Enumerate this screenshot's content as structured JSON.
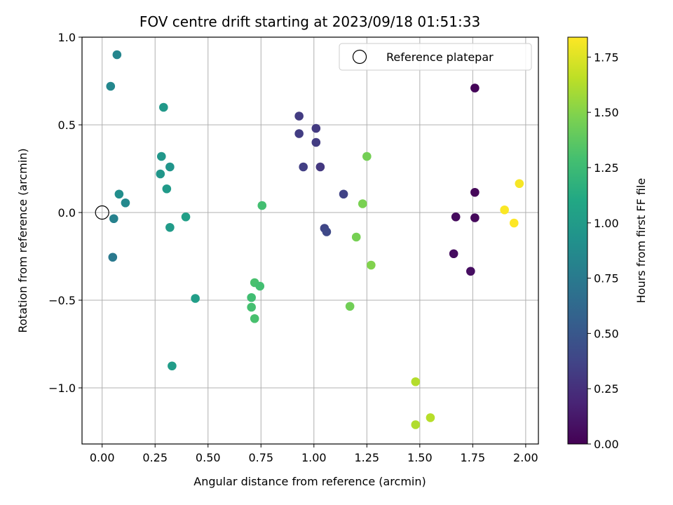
{
  "chart_data": {
    "type": "scatter",
    "title": "FOV centre drift starting at 2023/09/18 01:51:33",
    "xlabel": "Angular distance from reference (arcmin)",
    "ylabel": "Rotation from reference (arcmin)",
    "xlim": [
      -0.095,
      2.06
    ],
    "ylim": [
      -1.32,
      1.0
    ],
    "xticks": [
      0.0,
      0.25,
      0.5,
      0.75,
      1.0,
      1.25,
      1.5,
      1.75,
      2.0
    ],
    "xtick_labels": [
      "0.00",
      "0.25",
      "0.50",
      "0.75",
      "1.00",
      "1.25",
      "1.50",
      "1.75",
      "2.00"
    ],
    "yticks": [
      1.0,
      0.5,
      0.0,
      -0.5,
      -1.0
    ],
    "ytick_labels": [
      "1.0",
      "0.5",
      "0.0",
      "−0.5",
      "−1.0"
    ],
    "grid": true,
    "legend": {
      "placement": "top-right",
      "entries": [
        "Reference platepar"
      ]
    },
    "reference_point": {
      "name": "Reference platepar",
      "x": 0.0,
      "y": 0.0
    },
    "colorbar": {
      "label": "Hours from first FF file",
      "colormap": "viridis",
      "range": [
        0.0,
        1.84
      ],
      "ticks": [
        0.0,
        0.25,
        0.5,
        0.75,
        1.0,
        1.25,
        1.5,
        1.75
      ],
      "tick_labels": [
        "0.00",
        "0.25",
        "0.50",
        "0.75",
        "1.00",
        "1.25",
        "1.50",
        "1.75"
      ]
    },
    "points": [
      {
        "x": 1.76,
        "y": 0.71,
        "c": 0.02
      },
      {
        "x": 1.76,
        "y": 0.115,
        "c": 0.03
      },
      {
        "x": 1.76,
        "y": -0.03,
        "c": 0.04
      },
      {
        "x": 1.67,
        "y": -0.025,
        "c": 0.05
      },
      {
        "x": 1.66,
        "y": -0.235,
        "c": 0.06
      },
      {
        "x": 1.74,
        "y": -0.335,
        "c": 0.07
      },
      {
        "x": 0.93,
        "y": 0.55,
        "c": 0.32
      },
      {
        "x": 0.93,
        "y": 0.45,
        "c": 0.33
      },
      {
        "x": 1.01,
        "y": 0.48,
        "c": 0.31
      },
      {
        "x": 1.01,
        "y": 0.4,
        "c": 0.32
      },
      {
        "x": 0.95,
        "y": 0.26,
        "c": 0.34
      },
      {
        "x": 1.03,
        "y": 0.26,
        "c": 0.3
      },
      {
        "x": 1.14,
        "y": 0.105,
        "c": 0.36
      },
      {
        "x": 1.05,
        "y": -0.09,
        "c": 0.38
      },
      {
        "x": 1.06,
        "y": -0.11,
        "c": 0.4
      },
      {
        "x": 0.07,
        "y": 0.9,
        "c": 0.84
      },
      {
        "x": 0.04,
        "y": 0.72,
        "c": 0.85
      },
      {
        "x": 0.08,
        "y": 0.105,
        "c": 0.9
      },
      {
        "x": 0.11,
        "y": 0.055,
        "c": 0.86
      },
      {
        "x": 0.055,
        "y": -0.035,
        "c": 0.8
      },
      {
        "x": 0.05,
        "y": -0.255,
        "c": 0.74
      },
      {
        "x": 0.29,
        "y": 0.6,
        "c": 0.98
      },
      {
        "x": 0.28,
        "y": 0.32,
        "c": 0.97
      },
      {
        "x": 0.275,
        "y": 0.22,
        "c": 0.96
      },
      {
        "x": 0.32,
        "y": 0.26,
        "c": 0.95
      },
      {
        "x": 0.305,
        "y": 0.135,
        "c": 0.99
      },
      {
        "x": 0.32,
        "y": -0.085,
        "c": 1.0
      },
      {
        "x": 0.395,
        "y": -0.025,
        "c": 1.03
      },
      {
        "x": 0.44,
        "y": -0.49,
        "c": 1.02
      },
      {
        "x": 0.33,
        "y": -0.875,
        "c": 1.01
      },
      {
        "x": 0.755,
        "y": 0.04,
        "c": 1.28
      },
      {
        "x": 0.72,
        "y": -0.4,
        "c": 1.3
      },
      {
        "x": 0.745,
        "y": -0.42,
        "c": 1.28
      },
      {
        "x": 0.705,
        "y": -0.485,
        "c": 1.27
      },
      {
        "x": 0.705,
        "y": -0.54,
        "c": 1.29
      },
      {
        "x": 0.72,
        "y": -0.605,
        "c": 1.3
      },
      {
        "x": 1.25,
        "y": 0.32,
        "c": 1.45
      },
      {
        "x": 1.23,
        "y": 0.05,
        "c": 1.47
      },
      {
        "x": 1.2,
        "y": -0.14,
        "c": 1.46
      },
      {
        "x": 1.27,
        "y": -0.3,
        "c": 1.49
      },
      {
        "x": 1.17,
        "y": -0.535,
        "c": 1.44
      },
      {
        "x": 1.48,
        "y": -0.965,
        "c": 1.63
      },
      {
        "x": 1.48,
        "y": -1.21,
        "c": 1.62
      },
      {
        "x": 1.55,
        "y": -1.17,
        "c": 1.64
      },
      {
        "x": 1.97,
        "y": 0.165,
        "c": 1.82
      },
      {
        "x": 1.9,
        "y": 0.015,
        "c": 1.83
      },
      {
        "x": 1.945,
        "y": -0.06,
        "c": 1.84
      }
    ]
  }
}
